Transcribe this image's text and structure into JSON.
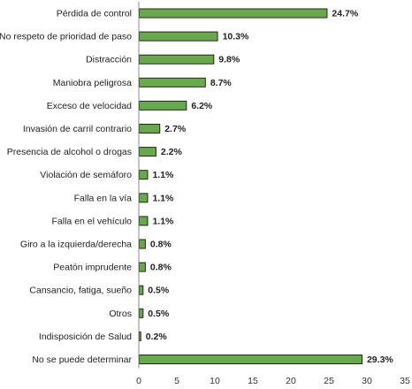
{
  "chart_data": {
    "type": "bar",
    "orientation": "horizontal",
    "title": "",
    "xlabel": "",
    "ylabel": "",
    "categories": [
      "Pérdida de control",
      "No respeto de prioridad de paso",
      "Distracción",
      "Maniobra peligrosa",
      "Exceso de velocidad",
      "Invasión de carril contrario",
      "Presencia de alcohol o drogas",
      "Violación de semáforo",
      "Falla en la vía",
      "Falla en el vehículo",
      "Giro a la izquierda/derecha",
      "Peatón imprudente",
      "Cansancio, fatiga, sueño",
      "Otros",
      "Indisposición de Salud",
      "No se puede determinar"
    ],
    "values": [
      24.7,
      10.3,
      9.8,
      8.7,
      6.2,
      2.7,
      2.2,
      1.1,
      1.1,
      1.1,
      0.8,
      0.8,
      0.5,
      0.5,
      0.2,
      29.3
    ],
    "value_labels": [
      "24.7%",
      "10.3%",
      "9.8%",
      "8.7%",
      "6.2%",
      "2.7%",
      "2.2%",
      "1.1%",
      "1.1%",
      "1.1%",
      "0.8%",
      "0.8%",
      "0.5%",
      "0.5%",
      "0.2%",
      "29.3%"
    ],
    "x_ticks": [
      "0",
      "5",
      "10",
      "15",
      "20",
      "25",
      "30",
      "35"
    ],
    "xlim": [
      0,
      35
    ],
    "grid": false,
    "legend": "none",
    "colors": {
      "bar_fill": "#6aa84f",
      "bar_stroke": "#1f2a14",
      "axis": "#8c8c8c"
    }
  }
}
